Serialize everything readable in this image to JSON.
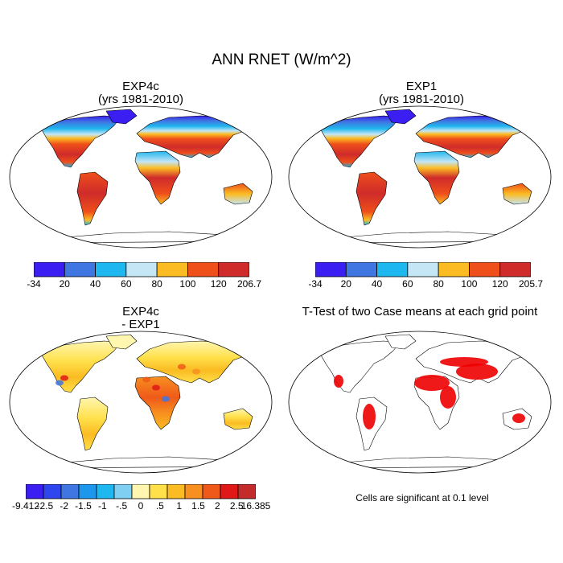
{
  "figure": {
    "title": "ANN RNET (W/m^2)"
  },
  "panels": [
    {
      "id": "exp4c",
      "title_line1": "EXP4c",
      "title_line2": "(yrs 1981-2010)",
      "colorbar": {
        "labels": [
          "-34",
          "20",
          "40",
          "60",
          "80",
          "100",
          "120",
          "206.7"
        ],
        "colors": [
          "#3a1ef2",
          "#3f76e1",
          "#1fb7ef",
          "#c5e6f5",
          "#fbbb22",
          "#ef4f1a",
          "#cf2b2b"
        ]
      }
    },
    {
      "id": "exp1",
      "title_line1": "EXP1",
      "title_line2": "(yrs 1981-2010)",
      "colorbar": {
        "labels": [
          "-34",
          "20",
          "40",
          "60",
          "80",
          "100",
          "120",
          "205.7"
        ],
        "colors": [
          "#3a1ef2",
          "#3f76e1",
          "#1fb7ef",
          "#c5e6f5",
          "#fbbb22",
          "#ef4f1a",
          "#cf2b2b"
        ]
      }
    },
    {
      "id": "diff",
      "title_line1": "EXP4c",
      "title_line2": "- EXP1",
      "colorbar": {
        "labels": [
          "-9.412",
          "-2.5",
          "-2",
          "-1.5",
          "-1",
          "-.5",
          "0",
          ".5",
          "1",
          "1.5",
          "2",
          "2.5",
          "16.385"
        ],
        "colors": [
          "#3a1ef2",
          "#2f46ef",
          "#3f76e1",
          "#1d97ec",
          "#1fb7ef",
          "#7fcff2",
          "#fff6b0",
          "#ffe04a",
          "#fbbb22",
          "#f7901f",
          "#ef5a1a",
          "#e01818",
          "#c42b2b"
        ]
      }
    },
    {
      "id": "ttest",
      "title_line1": "T-Test of two Case means at each grid point",
      "note": "Cells are significant at 0.1 level",
      "sig_color": "#ee0000"
    }
  ]
}
